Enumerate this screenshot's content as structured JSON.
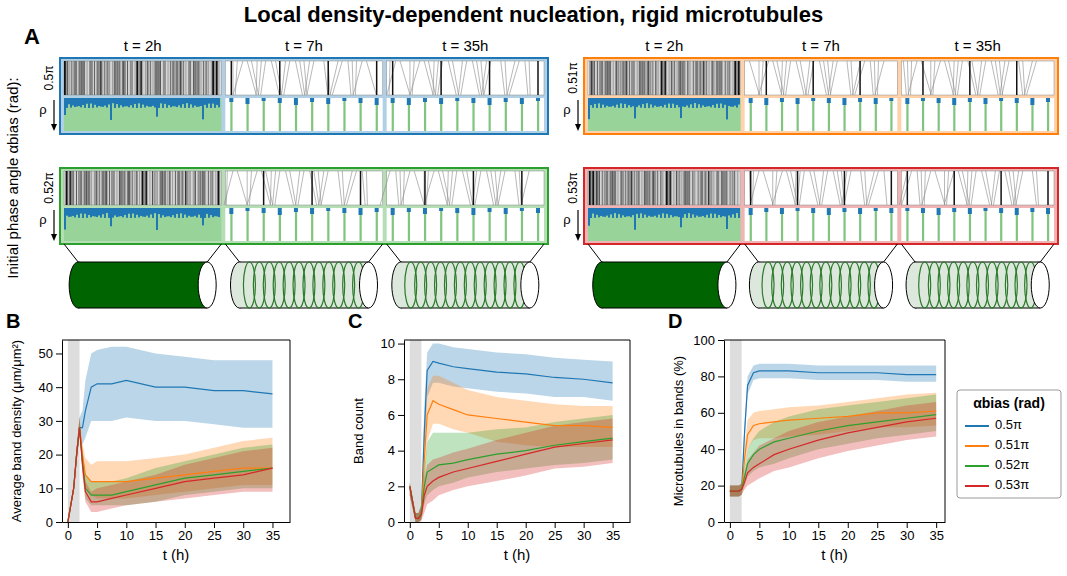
{
  "title": "Local density-dependent nucleation, rigid microtubules",
  "panel_a": {
    "label": "A",
    "y_title": "Initial phase angle αbias (rad):",
    "rho_label": "ρ",
    "times": [
      "t = 2h",
      "t = 7h",
      "t = 35h"
    ],
    "panels": [
      {
        "angle": "0.5π",
        "color": "#1f77b4"
      },
      {
        "angle": "0.51π",
        "color": "#ff7f0e"
      },
      {
        "angle": "0.52π",
        "color": "#2ca02c"
      },
      {
        "angle": "0.53π",
        "color": "#d62728"
      }
    ]
  },
  "chart_data": [
    {
      "type": "line",
      "label": "B",
      "xlabel": "t (h)",
      "ylabel": "Average band density (μm/μm²)",
      "x": [
        0,
        1,
        1.5,
        2,
        2.5,
        3,
        4,
        5,
        7.5,
        10,
        15,
        20,
        25,
        30,
        35
      ],
      "xlim": [
        -1,
        38
      ],
      "ylim": [
        0,
        54
      ],
      "xticks": [
        0,
        5,
        10,
        15,
        20,
        25,
        30,
        35
      ],
      "yticks": [
        0,
        10,
        20,
        30,
        40,
        50
      ],
      "shaded_x": [
        0,
        2
      ],
      "series": [
        {
          "color": "#1f77b4",
          "values": [
            0,
            10,
            20,
            28,
            28,
            33,
            40,
            41,
            41,
            42,
            40,
            40,
            39,
            39,
            38
          ],
          "lower": [
            0,
            9,
            18,
            26,
            23,
            25,
            30,
            30,
            30,
            31,
            30,
            30,
            29,
            28,
            28
          ],
          "upper": [
            0,
            11,
            22,
            31,
            33,
            42,
            50,
            51,
            52,
            52,
            50,
            49,
            48,
            48,
            48
          ]
        },
        {
          "color": "#ff7f0e",
          "values": [
            0,
            10,
            20,
            28,
            20,
            14,
            12,
            12,
            12,
            12,
            13,
            14,
            15,
            16,
            16
          ],
          "lower": [
            0,
            9,
            18,
            26,
            17,
            10,
            8,
            7,
            7,
            7,
            8,
            9,
            10,
            11,
            11
          ],
          "upper": [
            0,
            11,
            22,
            31,
            23,
            19,
            17,
            18,
            18,
            18,
            19,
            20,
            22,
            24,
            25
          ]
        },
        {
          "color": "#2ca02c",
          "values": [
            0,
            10,
            20,
            28,
            18,
            10,
            8,
            8,
            8,
            9,
            11,
            13,
            14,
            15,
            16
          ],
          "lower": [
            0,
            9,
            18,
            26,
            15,
            7,
            5,
            5,
            5,
            5,
            6,
            8,
            9,
            10,
            10
          ],
          "upper": [
            0,
            11,
            22,
            31,
            21,
            14,
            12,
            12,
            12,
            13,
            16,
            18,
            20,
            22,
            23
          ]
        },
        {
          "color": "#d62728",
          "values": [
            0,
            10,
            20,
            28,
            17,
            9,
            6,
            6,
            7,
            8,
            10,
            12,
            13,
            14,
            16
          ],
          "lower": [
            0,
            9,
            18,
            26,
            14,
            6,
            3,
            3,
            4,
            5,
            6,
            7,
            8,
            9,
            9
          ],
          "upper": [
            0,
            11,
            22,
            31,
            20,
            12,
            9,
            10,
            11,
            12,
            14,
            17,
            19,
            21,
            22
          ]
        }
      ]
    },
    {
      "type": "line",
      "label": "C",
      "xlabel": "t (h)",
      "ylabel": "Band count",
      "x": [
        0,
        1,
        1.5,
        2,
        2.5,
        3,
        4,
        5,
        7.5,
        10,
        15,
        20,
        25,
        30,
        35
      ],
      "xlim": [
        -1,
        38
      ],
      "ylim": [
        0,
        10.2
      ],
      "xticks": [
        0,
        5,
        10,
        15,
        20,
        25,
        30,
        35
      ],
      "yticks": [
        0,
        2,
        4,
        6,
        8,
        10
      ],
      "shaded_x": [
        0,
        2
      ],
      "series": [
        {
          "color": "#1f77b4",
          "values": [
            2,
            0.2,
            0.2,
            0.5,
            5,
            8.5,
            9,
            8.9,
            8.7,
            8.6,
            8.4,
            8.3,
            8.1,
            8,
            7.8
          ],
          "lower": [
            1.5,
            0,
            0,
            0.2,
            3.5,
            7,
            7.8,
            7.8,
            7.6,
            7.5,
            7.3,
            7.2,
            7,
            7,
            6.8
          ],
          "upper": [
            2.2,
            0.5,
            0.5,
            1,
            6.5,
            9.5,
            10,
            10,
            9.8,
            9.7,
            9.5,
            9.4,
            9.2,
            9.1,
            9
          ]
        },
        {
          "color": "#ff7f0e",
          "values": [
            2,
            0.2,
            0.2,
            0.5,
            3.5,
            6,
            6.8,
            6.6,
            6.3,
            6,
            5.8,
            5.6,
            5.4,
            5.4,
            5.3
          ],
          "lower": [
            1.5,
            0,
            0,
            0.2,
            2,
            4.5,
            5.5,
            5.5,
            5.2,
            5,
            4.5,
            4.3,
            4.2,
            4.2,
            4.2
          ],
          "upper": [
            2.2,
            0.5,
            0.5,
            1,
            5,
            7.5,
            8.2,
            8.2,
            7.8,
            7.4,
            7,
            6.8,
            6.6,
            6.5,
            6.5
          ]
        },
        {
          "color": "#2ca02c",
          "values": [
            2,
            0.2,
            0.2,
            0.5,
            2,
            2.8,
            3,
            3.2,
            3.3,
            3.5,
            3.8,
            4,
            4.3,
            4.5,
            4.7
          ],
          "lower": [
            1.5,
            0,
            0,
            0.1,
            1,
            1.5,
            1.8,
            2,
            2.2,
            2.5,
            2.8,
            3,
            3.2,
            3.3,
            3.5
          ],
          "upper": [
            2.2,
            0.5,
            0.5,
            1,
            3,
            4.5,
            5,
            5,
            5,
            5,
            5.2,
            5.3,
            5.6,
            5.8,
            6
          ]
        },
        {
          "color": "#d62728",
          "values": [
            2,
            0.2,
            0.2,
            0.4,
            1.5,
            2,
            2.3,
            2.5,
            2.8,
            3,
            3.4,
            3.8,
            4.2,
            4.4,
            4.6
          ],
          "lower": [
            1.5,
            0,
            0,
            0.1,
            0.5,
            1,
            1.2,
            1.5,
            1.8,
            2,
            2.3,
            2.6,
            3,
            3.1,
            3.3
          ],
          "upper": [
            2.2,
            0.5,
            0.5,
            0.8,
            2.5,
            3.2,
            3.5,
            3.6,
            3.9,
            4.1,
            4.6,
            5,
            5.4,
            5.6,
            5.8
          ]
        }
      ]
    },
    {
      "type": "line",
      "label": "D",
      "xlabel": "t (h)",
      "ylabel": "Microtubules in bands (%)",
      "x": [
        0,
        1,
        1.5,
        2,
        2.5,
        3,
        4,
        5,
        7.5,
        10,
        15,
        20,
        25,
        30,
        35
      ],
      "xlim": [
        -1,
        36.5
      ],
      "ylim": [
        0,
        100
      ],
      "xticks": [
        0,
        5,
        10,
        15,
        20,
        25,
        30,
        35
      ],
      "yticks": [
        0,
        20,
        40,
        60,
        80,
        100
      ],
      "shaded_x": [
        0,
        2
      ],
      "legend": "right",
      "legend_title": "αbias (rad)",
      "series": [
        {
          "name": "0.5π",
          "color": "#1f77b4",
          "values": [
            17,
            17,
            17,
            18,
            50,
            75,
            82,
            83,
            83,
            83,
            82,
            82,
            82,
            81,
            81
          ],
          "lower": [
            14,
            14,
            14,
            15,
            45,
            70,
            78,
            79,
            79,
            79,
            78,
            78,
            78,
            77,
            77
          ],
          "upper": [
            20,
            20,
            20,
            21,
            55,
            80,
            86,
            87,
            87,
            87,
            86,
            86,
            86,
            86,
            86
          ]
        },
        {
          "name": "0.51π",
          "color": "#ff7f0e",
          "values": [
            17,
            17,
            17,
            18,
            35,
            48,
            53,
            54,
            55,
            56,
            57,
            58,
            60,
            60,
            61
          ],
          "lower": [
            14,
            14,
            14,
            15,
            28,
            40,
            45,
            46,
            46,
            47,
            48,
            50,
            52,
            52,
            53
          ],
          "upper": [
            20,
            20,
            20,
            21,
            42,
            56,
            60,
            61,
            62,
            63,
            64,
            66,
            68,
            70,
            71
          ]
        },
        {
          "name": "0.52π",
          "color": "#2ca02c",
          "values": [
            17,
            17,
            17,
            18,
            25,
            32,
            37,
            40,
            44,
            46,
            50,
            53,
            55,
            57,
            59
          ],
          "lower": [
            14,
            14,
            14,
            15,
            20,
            25,
            28,
            30,
            32,
            35,
            40,
            43,
            46,
            48,
            50
          ],
          "upper": [
            20,
            20,
            20,
            21,
            30,
            40,
            46,
            50,
            55,
            58,
            62,
            64,
            66,
            68,
            70
          ]
        },
        {
          "name": "0.53π",
          "color": "#d62728",
          "values": [
            17,
            17,
            17,
            18,
            22,
            27,
            30,
            32,
            37,
            40,
            45,
            49,
            52,
            55,
            57
          ],
          "lower": [
            14,
            14,
            14,
            15,
            18,
            20,
            22,
            24,
            28,
            30,
            35,
            39,
            42,
            45,
            47
          ],
          "upper": [
            20,
            20,
            20,
            21,
            27,
            34,
            38,
            42,
            46,
            50,
            55,
            58,
            61,
            64,
            66
          ]
        }
      ]
    }
  ]
}
